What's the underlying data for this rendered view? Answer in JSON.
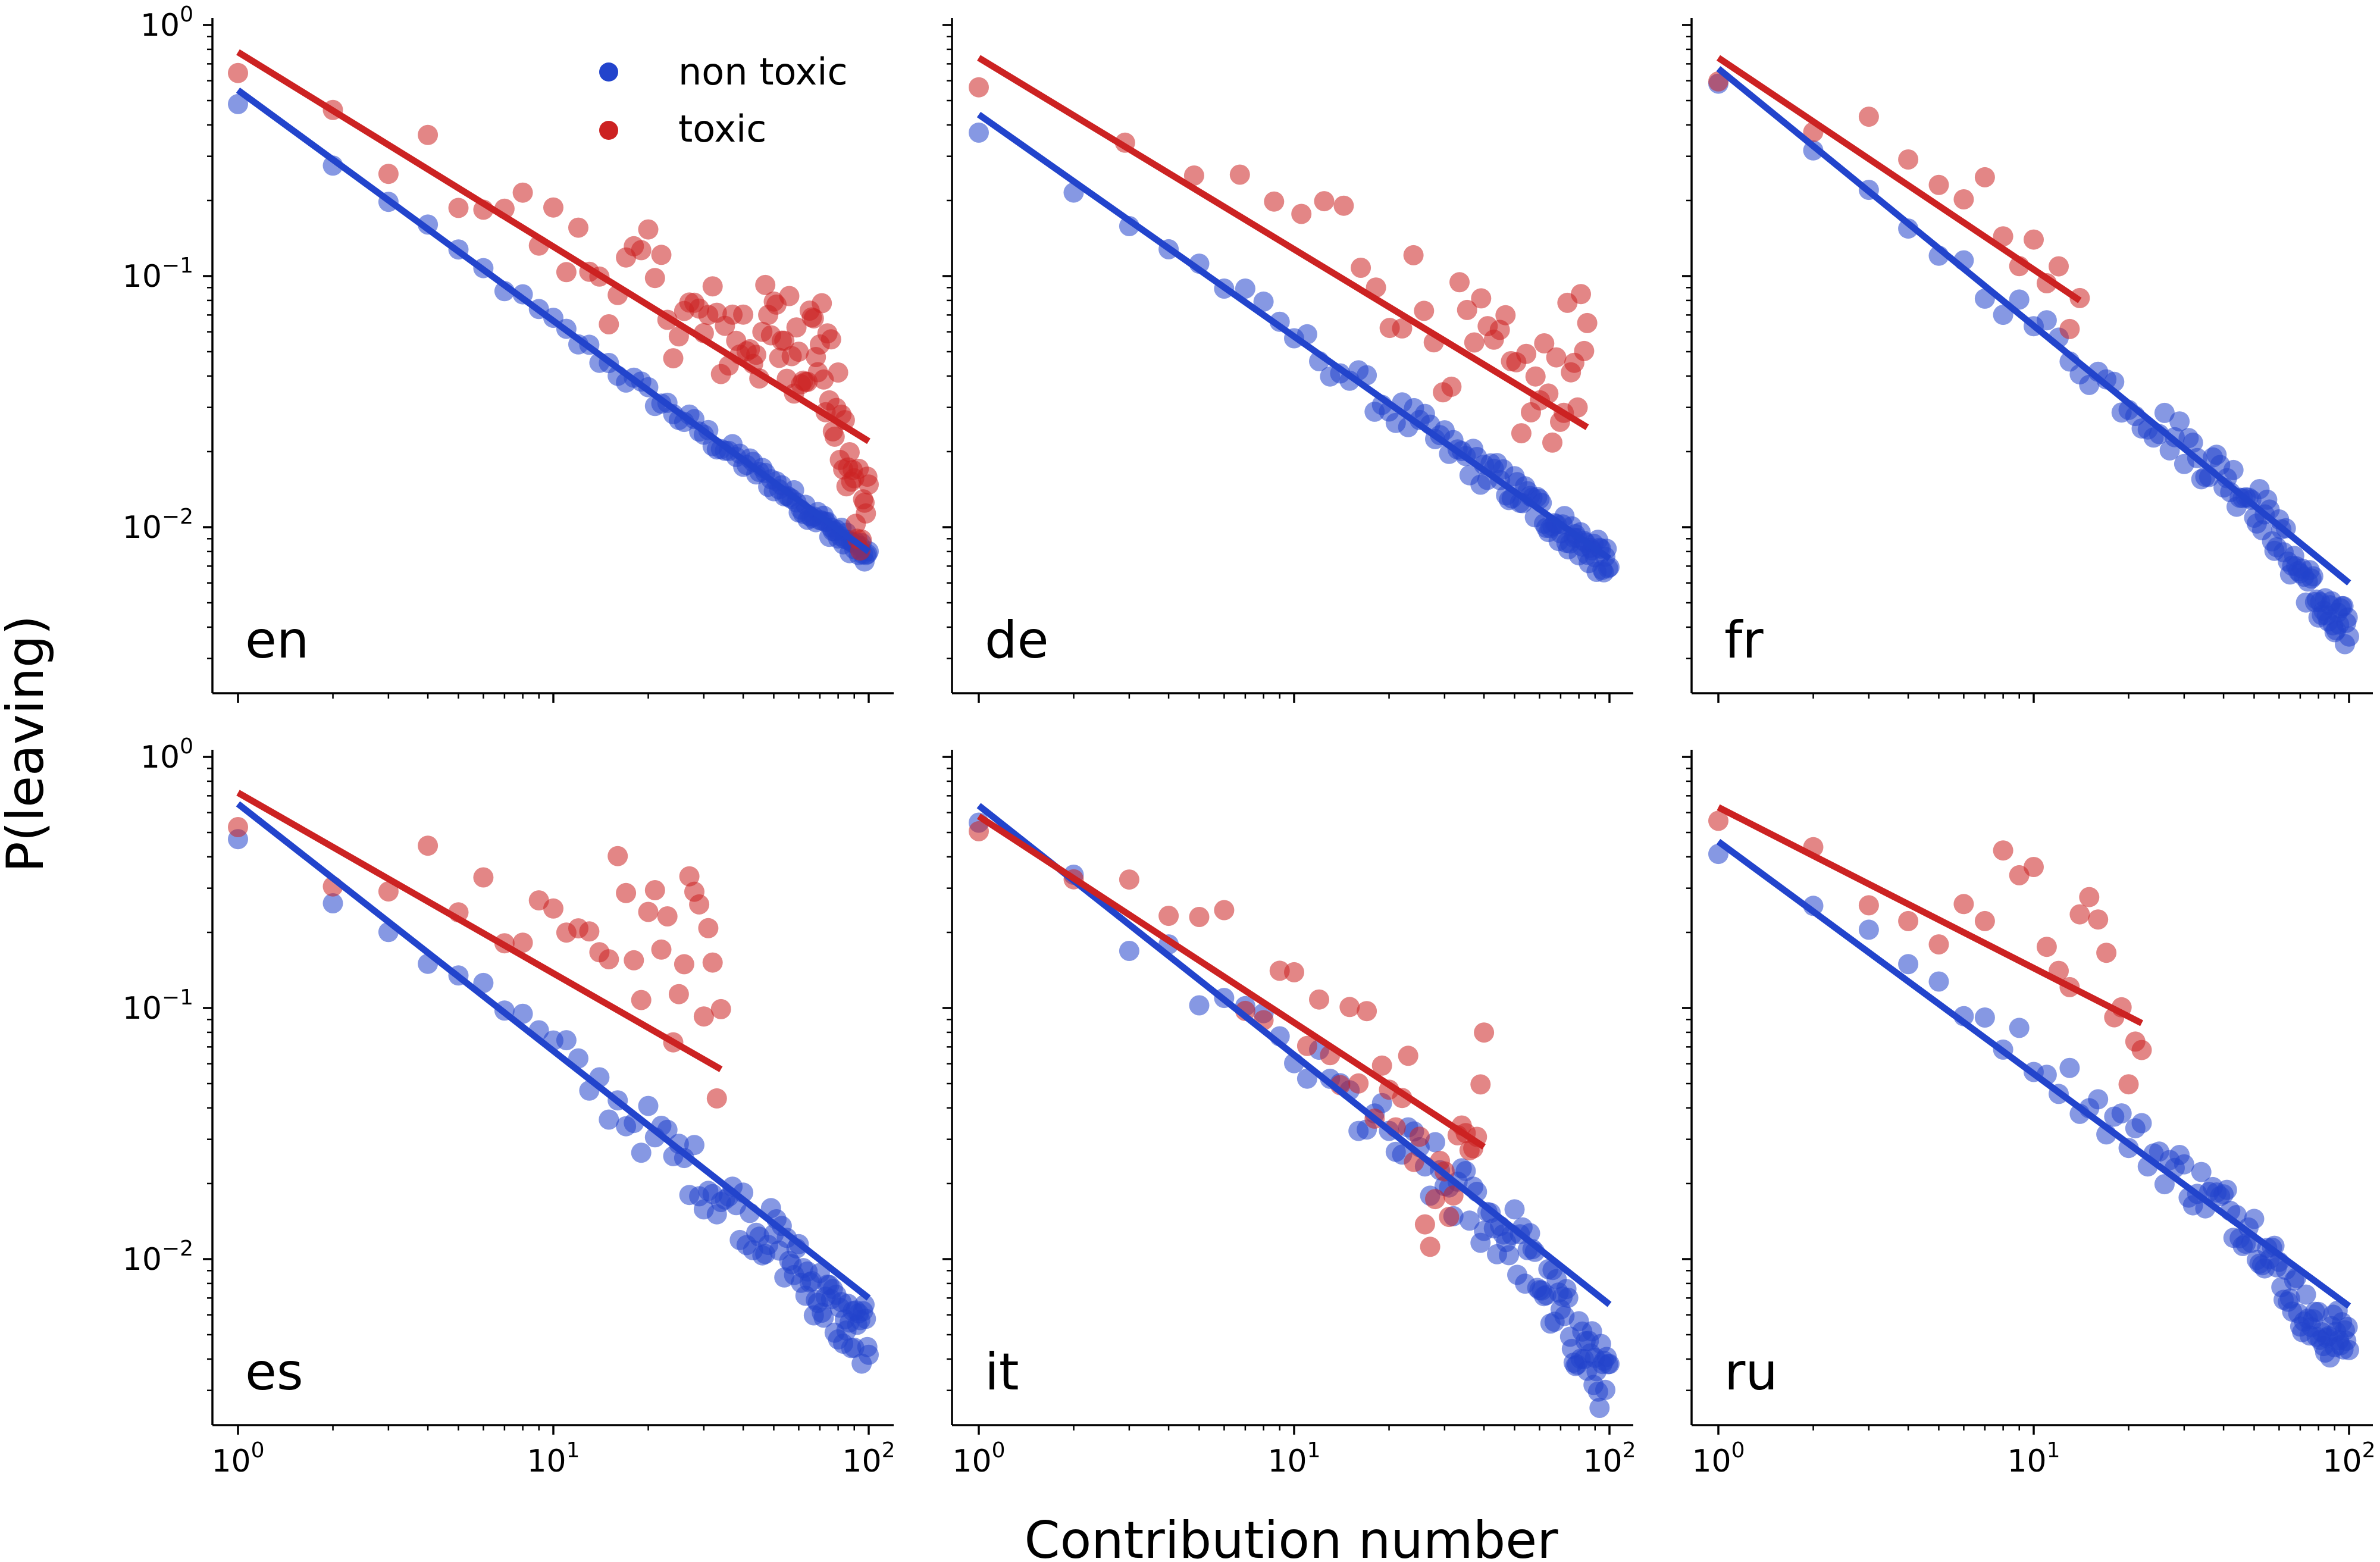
{
  "colors": {
    "non_toxic": "#2244cc",
    "toxic": "#cc2222"
  },
  "x_axis_title": "Contribution number",
  "y_axis_title": "P(leaving)",
  "y_tick_exponents": [
    "0",
    "-1",
    "-2"
  ],
  "x_tick_exponents": [
    "0",
    "1",
    "2"
  ],
  "legend": {
    "items": [
      {
        "label": "non toxic",
        "series": "non_toxic"
      },
      {
        "label": "toxic",
        "series": "toxic"
      }
    ]
  },
  "chart_data": [
    {
      "type": "scatter",
      "panel": "en",
      "xscale": "log",
      "yscale": "log",
      "xlim": [
        0.8,
        125
      ],
      "ylim": [
        0.002,
        1.0
      ],
      "series": [
        {
          "name": "non toxic",
          "fit": {
            "x": [
              1,
              100
            ],
            "y": [
              0.55,
              0.008
            ]
          },
          "n_points": 100,
          "noise": 0.04,
          "anchors": [
            [
              1,
              0.48
            ],
            [
              2,
              0.28
            ],
            [
              3,
              0.195
            ],
            [
              5,
              0.125
            ],
            [
              10,
              0.065
            ],
            [
              20,
              0.034
            ],
            [
              50,
              0.015
            ],
            [
              100,
              0.0075
            ]
          ]
        },
        {
          "name": "toxic",
          "fit": {
            "x": [
              1,
              100
            ],
            "y": [
              0.78,
              0.022
            ]
          },
          "n_points": 100,
          "noise": 0.22,
          "anchors": [
            [
              1,
              0.63
            ],
            [
              2,
              0.42
            ],
            [
              3,
              0.32
            ],
            [
              4,
              0.28
            ],
            [
              6,
              0.22
            ],
            [
              10,
              0.14
            ],
            [
              15,
              0.1
            ],
            [
              20,
              0.095
            ],
            [
              30,
              0.06
            ],
            [
              70,
              0.055
            ],
            [
              90,
              0.013
            ]
          ]
        }
      ]
    },
    {
      "type": "scatter",
      "panel": "de",
      "xscale": "log",
      "yscale": "log",
      "xlim": [
        0.8,
        125
      ],
      "ylim": [
        0.002,
        1.0
      ],
      "series": [
        {
          "name": "non toxic",
          "fit": {
            "x": [
              1,
              100
            ],
            "y": [
              0.44,
              0.0075
            ]
          },
          "n_points": 100,
          "noise": 0.07,
          "anchors": [
            [
              1,
              0.37
            ],
            [
              2,
              0.22
            ],
            [
              3,
              0.16
            ],
            [
              5,
              0.11
            ],
            [
              10,
              0.058
            ],
            [
              20,
              0.03
            ],
            [
              50,
              0.014
            ],
            [
              100,
              0.007
            ]
          ]
        },
        {
          "name": "toxic",
          "fit": {
            "x": [
              1,
              85
            ],
            "y": [
              0.74,
              0.025
            ]
          },
          "n_points": 45,
          "noise": 0.25,
          "anchors": [
            [
              1,
              0.48
            ],
            [
              2,
              0.38
            ],
            [
              3,
              0.3
            ],
            [
              4,
              0.28
            ],
            [
              8,
              0.2
            ],
            [
              15,
              0.15
            ],
            [
              30,
              0.06
            ],
            [
              60,
              0.032
            ],
            [
              85,
              0.056
            ]
          ]
        }
      ]
    },
    {
      "type": "scatter",
      "panel": "fr",
      "xscale": "log",
      "yscale": "log",
      "xlim": [
        0.8,
        125
      ],
      "ylim": [
        0.002,
        1.0
      ],
      "series": [
        {
          "name": "non toxic",
          "fit": {
            "x": [
              1,
              100
            ],
            "y": [
              0.67,
              0.006
            ]
          },
          "n_points": 100,
          "noise": 0.09,
          "anchors": [
            [
              1,
              0.55
            ],
            [
              2,
              0.3
            ],
            [
              5,
              0.13
            ],
            [
              10,
              0.065
            ],
            [
              20,
              0.032
            ],
            [
              50,
              0.013
            ],
            [
              90,
              0.004
            ]
          ]
        },
        {
          "name": "toxic",
          "fit": {
            "x": [
              1,
              14
            ],
            "y": [
              0.74,
              0.08
            ]
          },
          "n_points": 14,
          "noise": 0.15,
          "anchors": [
            [
              1,
              0.6
            ],
            [
              2,
              0.42
            ],
            [
              3,
              0.38
            ],
            [
              5,
              0.28
            ],
            [
              7,
              0.21
            ],
            [
              11,
              0.105
            ],
            [
              14,
              0.062
            ]
          ]
        }
      ]
    },
    {
      "type": "scatter",
      "panel": "es",
      "xscale": "log",
      "yscale": "log",
      "xlim": [
        0.8,
        125
      ],
      "ylim": [
        0.002,
        1.0
      ],
      "series": [
        {
          "name": "non toxic",
          "fit": {
            "x": [
              1,
              100
            ],
            "y": [
              0.65,
              0.007
            ]
          },
          "n_points": 100,
          "noise": 0.12,
          "anchors": [
            [
              1,
              0.48
            ],
            [
              2,
              0.28
            ],
            [
              3,
              0.205
            ],
            [
              5,
              0.14
            ],
            [
              10,
              0.068
            ],
            [
              20,
              0.032
            ],
            [
              50,
              0.012
            ],
            [
              90,
              0.005
            ]
          ]
        },
        {
          "name": "toxic",
          "fit": {
            "x": [
              1,
              34
            ],
            "y": [
              0.72,
              0.057
            ]
          },
          "n_points": 34,
          "noise": 0.35,
          "anchors": [
            [
              1,
              0.62
            ],
            [
              2,
              0.38
            ],
            [
              5,
              0.28
            ],
            [
              10,
              0.22
            ],
            [
              14,
              0.23
            ],
            [
              18,
              0.2
            ],
            [
              26,
              0.15
            ],
            [
              32,
              0.16
            ],
            [
              33,
              0.045
            ]
          ]
        }
      ]
    },
    {
      "type": "scatter",
      "panel": "it",
      "xscale": "log",
      "yscale": "log",
      "xlim": [
        0.8,
        125
      ],
      "ylim": [
        0.002,
        1.0
      ],
      "series": [
        {
          "name": "non toxic",
          "fit": {
            "x": [
              1,
              100
            ],
            "y": [
              0.64,
              0.0066
            ]
          },
          "n_points": 100,
          "noise": 0.14,
          "anchors": [
            [
              1,
              0.5
            ],
            [
              2,
              0.3
            ],
            [
              5,
              0.12
            ],
            [
              10,
              0.065
            ],
            [
              20,
              0.03
            ],
            [
              50,
              0.012
            ],
            [
              100,
              0.003
            ]
          ]
        },
        {
          "name": "toxic",
          "fit": {
            "x": [
              1,
              40
            ],
            "y": [
              0.58,
              0.028
            ]
          },
          "n_points": 40,
          "noise": 0.3,
          "anchors": [
            [
              1,
              0.46
            ],
            [
              2,
              0.32
            ],
            [
              4,
              0.2
            ],
            [
              8,
              0.15
            ],
            [
              10,
              0.14
            ],
            [
              15,
              0.07
            ],
            [
              25,
              0.045
            ],
            [
              23,
              0.01
            ],
            [
              40,
              0.047
            ]
          ]
        }
      ]
    },
    {
      "type": "scatter",
      "panel": "ru",
      "xscale": "log",
      "yscale": "log",
      "xlim": [
        0.8,
        125
      ],
      "ylim": [
        0.002,
        1.0
      ],
      "series": [
        {
          "name": "non toxic",
          "fit": {
            "x": [
              1,
              100
            ],
            "y": [
              0.46,
              0.0065
            ]
          },
          "n_points": 100,
          "noise": 0.1,
          "anchors": [
            [
              1,
              0.43
            ],
            [
              2,
              0.25
            ],
            [
              5,
              0.125
            ],
            [
              10,
              0.065
            ],
            [
              20,
              0.032
            ],
            [
              50,
              0.013
            ],
            [
              80,
              0.005
            ]
          ]
        },
        {
          "name": "toxic",
          "fit": {
            "x": [
              1,
              22
            ],
            "y": [
              0.63,
              0.087
            ]
          },
          "n_points": 22,
          "noise": 0.3,
          "anchors": [
            [
              1,
              0.52
            ],
            [
              2,
              0.35
            ],
            [
              3,
              0.32
            ],
            [
              5,
              0.27
            ],
            [
              8,
              0.27
            ],
            [
              12,
              0.2
            ],
            [
              18,
              0.13
            ],
            [
              20,
              0.053
            ]
          ]
        }
      ]
    }
  ]
}
